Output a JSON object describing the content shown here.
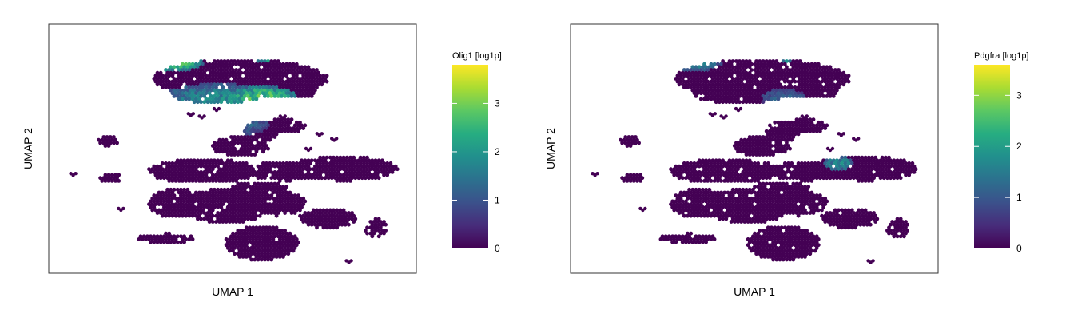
{
  "gradient": [
    "#440154",
    "#472c7a",
    "#3b518b",
    "#2c718e",
    "#21908d",
    "#27ad81",
    "#5cc863",
    "#aadc32",
    "#fde725"
  ],
  "chart_data": [
    {
      "type": "heatmap",
      "subtype": "umap-hexbin",
      "xlabel": "UMAP 1",
      "ylabel": "UMAP 2",
      "colorbar_title": "Olig1 [log1p]",
      "colorbar_ticks": [
        "0",
        "1",
        "2",
        "3"
      ],
      "colorbar_range": [
        0,
        3.8
      ],
      "high_regions": [
        {
          "cx": 0.58,
          "cy": 0.92,
          "rx": 0.12,
          "ry": 0.07,
          "value": 3.4
        },
        {
          "cx": 0.34,
          "cy": 0.84,
          "rx": 0.08,
          "ry": 0.03,
          "value": 2.6
        },
        {
          "cx": 0.58,
          "cy": 0.7,
          "rx": 0.1,
          "ry": 0.05,
          "value": 2.8
        },
        {
          "cx": 0.46,
          "cy": 0.7,
          "rx": 0.16,
          "ry": 0.06,
          "value": 1.8
        },
        {
          "cx": 0.5,
          "cy": 0.6,
          "rx": 0.1,
          "ry": 0.05,
          "value": 1.4
        }
      ]
    },
    {
      "type": "heatmap",
      "subtype": "umap-hexbin",
      "xlabel": "UMAP 1",
      "ylabel": "UMAP 2",
      "colorbar_title": "Pdgfra [log1p]",
      "colorbar_ticks": [
        "0",
        "1",
        "2",
        "3"
      ],
      "colorbar_range": [
        0,
        3.6
      ],
      "high_regions": [
        {
          "cx": 0.58,
          "cy": 0.92,
          "rx": 0.12,
          "ry": 0.07,
          "value": 2.9
        },
        {
          "cx": 0.34,
          "cy": 0.84,
          "rx": 0.07,
          "ry": 0.03,
          "value": 1.6
        },
        {
          "cx": 0.73,
          "cy": 0.44,
          "rx": 0.04,
          "ry": 0.03,
          "value": 1.8
        },
        {
          "cx": 0.58,
          "cy": 0.7,
          "rx": 0.06,
          "ry": 0.04,
          "value": 1.2
        }
      ]
    }
  ]
}
